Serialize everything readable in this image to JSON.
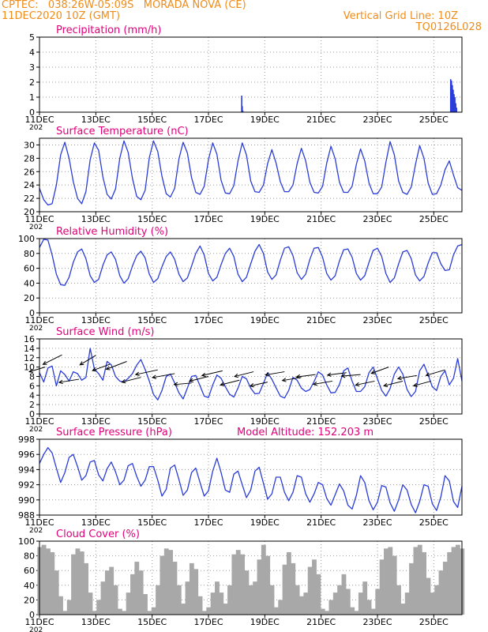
{
  "header": {
    "line1_left": "CPTEC:   038:26W-05:09S   MORADA NOVA (CE)",
    "line2_left": "11DEC2020 10Z (GMT)",
    "line2_right": "Vertical Grid Line: 10Z",
    "line3_right": "TQ0126L028"
  },
  "colors": {
    "title": "#e0007a",
    "header": "#f08c1a",
    "series": "#2a3cd8",
    "cloud": "#a8a8a8",
    "grid": "#9a9a9a"
  },
  "x_axis": {
    "tick_labels": [
      "11DEC",
      "13DEC",
      "15DEC",
      "17DEC",
      "19DEC",
      "21DEC",
      "23DEC",
      "25DEC"
    ],
    "tick_days": [
      0,
      2,
      4,
      6,
      8,
      10,
      12,
      14
    ],
    "truncated_year_label": "202",
    "range_days": [
      0,
      15.0
    ]
  },
  "chart_data": [
    {
      "type": "bar",
      "title": "Precipitation (mm/h)",
      "ylim": [
        0,
        5
      ],
      "yticks": [
        0,
        1,
        2,
        3,
        4,
        5
      ],
      "grid": true,
      "x_days": [
        7.18,
        7.2,
        7.22,
        14.6,
        14.63,
        14.66,
        14.69,
        14.72,
        14.75,
        14.78,
        14.81
      ],
      "values": [
        1.1,
        0.4,
        0.1,
        2.2,
        2.1,
        1.8,
        1.5,
        1.2,
        1.0,
        0.6,
        0.3
      ]
    },
    {
      "type": "line",
      "title": "Surface Temperature (nC)",
      "ylim": [
        20,
        31
      ],
      "yticks": [
        20,
        22,
        24,
        26,
        28,
        30
      ],
      "grid": true,
      "x_days": [
        0,
        0.15,
        0.3,
        0.45,
        0.6,
        0.75,
        0.9,
        1.05,
        1.2,
        1.35,
        1.5,
        1.65,
        1.8,
        1.95,
        2.1,
        2.25,
        2.4,
        2.55,
        2.7,
        2.85,
        3.0,
        3.15,
        3.3,
        3.45,
        3.6,
        3.75,
        3.9,
        4.05,
        4.2,
        4.35,
        4.5,
        4.65,
        4.8,
        4.95,
        5.1,
        5.25,
        5.4,
        5.55,
        5.7,
        5.85,
        6.0,
        6.15,
        6.3,
        6.45,
        6.6,
        6.75,
        6.9,
        7.05,
        7.2,
        7.35,
        7.5,
        7.65,
        7.8,
        7.95,
        8.1,
        8.25,
        8.4,
        8.55,
        8.7,
        8.85,
        9.0,
        9.15,
        9.3,
        9.45,
        9.6,
        9.75,
        9.9,
        10.05,
        10.2,
        10.35,
        10.5,
        10.65,
        10.8,
        10.95,
        11.1,
        11.25,
        11.4,
        11.55,
        11.7,
        11.85,
        12.0,
        12.15,
        12.3,
        12.45,
        12.6,
        12.75,
        12.9,
        13.05,
        13.2,
        13.35,
        13.5,
        13.65,
        13.8,
        13.95,
        14.1,
        14.25,
        14.4,
        14.55,
        14.7,
        14.85,
        15.0
      ],
      "values": [
        23.5,
        21.8,
        21.0,
        21.2,
        24.0,
        28.5,
        30.4,
        28.0,
        24.5,
        22.0,
        21.2,
        23.0,
        27.8,
        30.3,
        29.2,
        25.2,
        22.6,
        21.9,
        23.4,
        28.0,
        30.6,
        28.9,
        25.0,
        22.3,
        21.8,
        23.2,
        28.1,
        30.6,
        29.0,
        25.3,
        22.7,
        22.2,
        23.5,
        27.9,
        30.4,
        28.8,
        25.1,
        22.9,
        22.6,
        23.8,
        27.8,
        30.3,
        28.6,
        24.7,
        22.8,
        22.7,
        23.9,
        27.6,
        30.3,
        28.5,
        24.6,
        23.0,
        22.9,
        24.0,
        27.2,
        29.3,
        27.3,
        24.5,
        23.0,
        23.0,
        24.0,
        27.2,
        29.5,
        27.6,
        24.4,
        22.9,
        22.8,
        23.8,
        27.3,
        29.8,
        27.9,
        24.4,
        22.9,
        22.9,
        23.8,
        27.1,
        29.4,
        27.6,
        24.3,
        22.7,
        22.7,
        23.7,
        27.4,
        30.5,
        28.5,
        24.6,
        22.9,
        22.6,
        23.7,
        27.1,
        29.9,
        28.0,
        24.3,
        22.6,
        22.7,
        24.0,
        26.3,
        27.6,
        25.5,
        23.6,
        23.2
      ]
    },
    {
      "type": "line",
      "title": "Relative Humidity (%)",
      "ylim": [
        0,
        100
      ],
      "yticks": [
        0,
        20,
        40,
        60,
        80,
        100
      ],
      "grid": true,
      "x_days": [
        0,
        0.15,
        0.3,
        0.45,
        0.6,
        0.75,
        0.9,
        1.05,
        1.2,
        1.35,
        1.5,
        1.65,
        1.8,
        1.95,
        2.1,
        2.25,
        2.4,
        2.55,
        2.7,
        2.85,
        3.0,
        3.15,
        3.3,
        3.45,
        3.6,
        3.75,
        3.9,
        4.05,
        4.2,
        4.35,
        4.5,
        4.65,
        4.8,
        4.95,
        5.1,
        5.25,
        5.4,
        5.55,
        5.7,
        5.85,
        6.0,
        6.15,
        6.3,
        6.45,
        6.6,
        6.75,
        6.9,
        7.05,
        7.2,
        7.35,
        7.5,
        7.65,
        7.8,
        7.95,
        8.1,
        8.25,
        8.4,
        8.55,
        8.7,
        8.85,
        9.0,
        9.15,
        9.3,
        9.45,
        9.6,
        9.75,
        9.9,
        10.05,
        10.2,
        10.35,
        10.5,
        10.65,
        10.8,
        10.95,
        11.1,
        11.25,
        11.4,
        11.55,
        11.7,
        11.85,
        12.0,
        12.15,
        12.3,
        12.45,
        12.6,
        12.75,
        12.9,
        13.05,
        13.2,
        13.35,
        13.5,
        13.65,
        13.8,
        13.95,
        14.1,
        14.25,
        14.4,
        14.55,
        14.7,
        14.85,
        15.0
      ],
      "values": [
        88,
        99,
        98,
        78,
        52,
        38,
        37,
        48,
        68,
        82,
        86,
        73,
        50,
        41,
        45,
        64,
        78,
        82,
        72,
        50,
        40,
        46,
        63,
        77,
        83,
        74,
        52,
        41,
        46,
        62,
        76,
        82,
        72,
        52,
        42,
        47,
        63,
        80,
        90,
        78,
        53,
        43,
        48,
        65,
        80,
        87,
        76,
        52,
        42,
        48,
        66,
        83,
        92,
        80,
        55,
        45,
        51,
        71,
        87,
        89,
        77,
        54,
        45,
        52,
        72,
        87,
        88,
        75,
        53,
        44,
        50,
        70,
        85,
        86,
        75,
        53,
        44,
        50,
        68,
        84,
        87,
        76,
        53,
        41,
        47,
        66,
        82,
        84,
        73,
        51,
        43,
        49,
        67,
        81,
        81,
        66,
        57,
        58,
        78,
        90,
        92
      ]
    },
    {
      "type": "line",
      "title": "Surface Wind (m/s)",
      "ylim": [
        0,
        16
      ],
      "yticks": [
        0,
        2,
        4,
        6,
        8,
        10,
        12,
        14,
        16
      ],
      "grid": true,
      "x_days": [
        0,
        0.15,
        0.3,
        0.45,
        0.6,
        0.75,
        0.9,
        1.05,
        1.2,
        1.35,
        1.5,
        1.65,
        1.8,
        1.95,
        2.1,
        2.25,
        2.4,
        2.55,
        2.7,
        2.85,
        3.0,
        3.15,
        3.3,
        3.45,
        3.6,
        3.75,
        3.9,
        4.05,
        4.2,
        4.35,
        4.5,
        4.65,
        4.8,
        4.95,
        5.1,
        5.25,
        5.4,
        5.55,
        5.7,
        5.85,
        6.0,
        6.15,
        6.3,
        6.45,
        6.6,
        6.75,
        6.9,
        7.05,
        7.2,
        7.35,
        7.5,
        7.65,
        7.8,
        7.95,
        8.1,
        8.25,
        8.4,
        8.55,
        8.7,
        8.85,
        9.0,
        9.15,
        9.3,
        9.45,
        9.6,
        9.75,
        9.9,
        10.05,
        10.2,
        10.35,
        10.5,
        10.65,
        10.8,
        10.95,
        11.1,
        11.25,
        11.4,
        11.55,
        11.7,
        11.85,
        12.0,
        12.15,
        12.3,
        12.45,
        12.6,
        12.75,
        12.9,
        13.05,
        13.2,
        13.35,
        13.5,
        13.65,
        13.8,
        13.95,
        14.1,
        14.25,
        14.4,
        14.55,
        14.7,
        14.85,
        15.0
      ],
      "values": [
        8.8,
        6.8,
        9.8,
        10.2,
        6.0,
        9.2,
        8.4,
        7.0,
        9.0,
        8.6,
        7.2,
        7.8,
        14.0,
        9.6,
        8.6,
        7.2,
        11.2,
        10.5,
        8.0,
        7.0,
        6.8,
        7.6,
        8.6,
        10.4,
        11.6,
        9.5,
        7.0,
        4.2,
        3.0,
        5.0,
        8.0,
        8.5,
        6.6,
        4.5,
        3.2,
        5.5,
        8.0,
        8.2,
        6.0,
        3.8,
        3.5,
        6.2,
        8.3,
        7.6,
        5.8,
        4.2,
        3.6,
        5.5,
        8.0,
        7.5,
        5.5,
        4.3,
        4.4,
        6.5,
        8.8,
        7.4,
        5.6,
        3.8,
        3.4,
        5.0,
        7.8,
        7.2,
        5.5,
        4.8,
        5.2,
        6.9,
        9.0,
        8.3,
        6.2,
        4.5,
        4.6,
        6.3,
        9.2,
        9.8,
        7.0,
        4.8,
        4.8,
        5.8,
        8.8,
        10.0,
        7.5,
        5.0,
        3.8,
        5.4,
        8.5,
        10.0,
        8.5,
        5.2,
        3.7,
        4.8,
        9.2,
        10.6,
        8.3,
        5.8,
        5.0,
        8.0,
        9.2,
        6.2,
        7.6,
        11.8,
        7.0
      ],
      "wind_vectors": [
        {
          "x_day": 0.2,
          "y": 10.0,
          "u": -20,
          "v": 6
        },
        {
          "x_day": 0.8,
          "y": 12.6,
          "u": -24,
          "v": 12
        },
        {
          "x_day": 1.4,
          "y": 7.4,
          "u": -25,
          "v": 4
        },
        {
          "x_day": 2.0,
          "y": 12.5,
          "u": -20,
          "v": 12
        },
        {
          "x_day": 2.5,
          "y": 10.6,
          "u": -22,
          "v": 8
        },
        {
          "x_day": 3.1,
          "y": 11.2,
          "u": -26,
          "v": 10
        },
        {
          "x_day": 3.6,
          "y": 7.8,
          "u": -24,
          "v": 6
        },
        {
          "x_day": 4.2,
          "y": 9.4,
          "u": -28,
          "v": 6
        },
        {
          "x_day": 4.8,
          "y": 8.6,
          "u": -28,
          "v": 5
        },
        {
          "x_day": 5.4,
          "y": 6.6,
          "u": -22,
          "v": 2
        },
        {
          "x_day": 6.0,
          "y": 8.0,
          "u": -24,
          "v": 6
        },
        {
          "x_day": 6.5,
          "y": 9.2,
          "u": -26,
          "v": 6
        },
        {
          "x_day": 7.1,
          "y": 7.2,
          "u": -24,
          "v": 6
        },
        {
          "x_day": 7.6,
          "y": 9.0,
          "u": -24,
          "v": 6
        },
        {
          "x_day": 8.1,
          "y": 6.8,
          "u": -22,
          "v": 5
        },
        {
          "x_day": 8.7,
          "y": 9.0,
          "u": -24,
          "v": 4
        },
        {
          "x_day": 9.3,
          "y": 7.8,
          "u": -24,
          "v": 4
        },
        {
          "x_day": 9.8,
          "y": 8.4,
          "u": -24,
          "v": 3
        },
        {
          "x_day": 10.4,
          "y": 7.0,
          "u": -24,
          "v": 4
        },
        {
          "x_day": 10.9,
          "y": 8.8,
          "u": -24,
          "v": 3
        },
        {
          "x_day": 11.4,
          "y": 8.4,
          "u": -24,
          "v": 2
        },
        {
          "x_day": 11.9,
          "y": 7.0,
          "u": -24,
          "v": 5
        },
        {
          "x_day": 12.4,
          "y": 10.0,
          "u": -22,
          "v": 8
        },
        {
          "x_day": 12.9,
          "y": 7.0,
          "u": -24,
          "v": 6
        },
        {
          "x_day": 13.4,
          "y": 8.2,
          "u": -24,
          "v": 4
        },
        {
          "x_day": 13.9,
          "y": 7.0,
          "u": -22,
          "v": 6
        },
        {
          "x_day": 14.4,
          "y": 9.4,
          "u": -24,
          "v": 7
        }
      ]
    },
    {
      "type": "line",
      "title": "Surface Pressure (hPa)",
      "annotation": "Model Altitude: 152.203  m",
      "ylim": [
        988,
        998
      ],
      "yticks": [
        988,
        990,
        992,
        994,
        996,
        998
      ],
      "grid": true,
      "x_days": [
        0,
        0.15,
        0.3,
        0.45,
        0.6,
        0.75,
        0.9,
        1.05,
        1.2,
        1.35,
        1.5,
        1.65,
        1.8,
        1.95,
        2.1,
        2.25,
        2.4,
        2.55,
        2.7,
        2.85,
        3.0,
        3.15,
        3.3,
        3.45,
        3.6,
        3.75,
        3.9,
        4.05,
        4.2,
        4.35,
        4.5,
        4.65,
        4.8,
        4.95,
        5.1,
        5.25,
        5.4,
        5.55,
        5.7,
        5.85,
        6.0,
        6.15,
        6.3,
        6.45,
        6.6,
        6.75,
        6.9,
        7.05,
        7.2,
        7.35,
        7.5,
        7.65,
        7.8,
        7.95,
        8.1,
        8.25,
        8.4,
        8.55,
        8.7,
        8.85,
        9.0,
        9.15,
        9.3,
        9.45,
        9.6,
        9.75,
        9.9,
        10.05,
        10.2,
        10.35,
        10.5,
        10.65,
        10.8,
        10.95,
        11.1,
        11.25,
        11.4,
        11.55,
        11.7,
        11.85,
        12.0,
        12.15,
        12.3,
        12.45,
        12.6,
        12.75,
        12.9,
        13.05,
        13.2,
        13.35,
        13.5,
        13.65,
        13.8,
        13.95,
        14.1,
        14.25,
        14.4,
        14.55,
        14.7,
        14.85,
        15.0
      ],
      "values": [
        994.8,
        996.0,
        996.9,
        996.2,
        994.2,
        992.3,
        993.6,
        995.6,
        996.0,
        994.4,
        992.6,
        993.2,
        995.0,
        995.2,
        993.3,
        992.5,
        994.1,
        995.0,
        993.7,
        992.0,
        992.6,
        994.5,
        994.8,
        993.1,
        991.8,
        992.6,
        994.4,
        994.4,
        992.6,
        990.5,
        991.4,
        994.2,
        994.6,
        992.7,
        990.6,
        991.3,
        993.6,
        994.2,
        992.3,
        990.5,
        991.2,
        993.8,
        995.5,
        993.6,
        991.3,
        991.0,
        993.4,
        993.8,
        992.0,
        990.3,
        991.3,
        993.8,
        994.3,
        992.2,
        990.1,
        990.8,
        993.0,
        993.0,
        991.0,
        989.9,
        991.0,
        993.2,
        993.0,
        990.8,
        989.7,
        990.8,
        992.3,
        992.0,
        990.2,
        989.3,
        990.7,
        992.1,
        991.2,
        989.3,
        988.8,
        990.6,
        993.2,
        992.3,
        989.9,
        988.7,
        989.7,
        991.9,
        991.7,
        989.6,
        988.5,
        990.0,
        992.0,
        991.3,
        989.4,
        988.3,
        989.8,
        992.0,
        991.8,
        989.5,
        988.6,
        990.4,
        993.2,
        992.5,
        989.8,
        989.0,
        991.8
      ]
    },
    {
      "type": "area",
      "title": "Cloud Cover (%)",
      "ylim": [
        0,
        100
      ],
      "yticks": [
        0,
        20,
        40,
        60,
        80,
        100
      ],
      "grid": true,
      "x_days": [
        0,
        0.15,
        0.3,
        0.45,
        0.6,
        0.75,
        0.9,
        1.05,
        1.2,
        1.35,
        1.5,
        1.65,
        1.8,
        1.95,
        2.1,
        2.25,
        2.4,
        2.55,
        2.7,
        2.85,
        3.0,
        3.15,
        3.3,
        3.45,
        3.6,
        3.75,
        3.9,
        4.05,
        4.2,
        4.35,
        4.5,
        4.65,
        4.8,
        4.95,
        5.1,
        5.25,
        5.4,
        5.55,
        5.7,
        5.85,
        6.0,
        6.15,
        6.3,
        6.45,
        6.6,
        6.75,
        6.9,
        7.05,
        7.2,
        7.35,
        7.5,
        7.65,
        7.8,
        7.95,
        8.1,
        8.25,
        8.4,
        8.55,
        8.7,
        8.85,
        9.0,
        9.15,
        9.3,
        9.45,
        9.6,
        9.75,
        9.9,
        10.05,
        10.2,
        10.35,
        10.5,
        10.65,
        10.8,
        10.95,
        11.1,
        11.25,
        11.4,
        11.55,
        11.7,
        11.85,
        12.0,
        12.15,
        12.3,
        12.45,
        12.6,
        12.75,
        12.9,
        13.05,
        13.2,
        13.35,
        13.5,
        13.65,
        13.8,
        13.95,
        14.1,
        14.25,
        14.4,
        14.55,
        14.7,
        14.85,
        15.0
      ],
      "values": [
        92,
        95,
        90,
        85,
        60,
        25,
        5,
        20,
        82,
        90,
        86,
        70,
        30,
        5,
        20,
        45,
        60,
        65,
        40,
        8,
        5,
        30,
        55,
        72,
        60,
        28,
        5,
        10,
        40,
        80,
        90,
        88,
        72,
        40,
        15,
        45,
        70,
        62,
        25,
        5,
        10,
        30,
        45,
        30,
        15,
        40,
        82,
        88,
        82,
        60,
        40,
        45,
        75,
        95,
        80,
        40,
        10,
        20,
        68,
        85,
        70,
        40,
        25,
        30,
        65,
        75,
        55,
        8,
        5,
        20,
        30,
        40,
        55,
        35,
        10,
        5,
        30,
        45,
        20,
        8,
        35,
        75,
        90,
        92,
        80,
        40,
        15,
        30,
        70,
        92,
        95,
        85,
        50,
        30,
        40,
        60,
        72,
        85,
        92,
        95,
        90
      ]
    }
  ]
}
